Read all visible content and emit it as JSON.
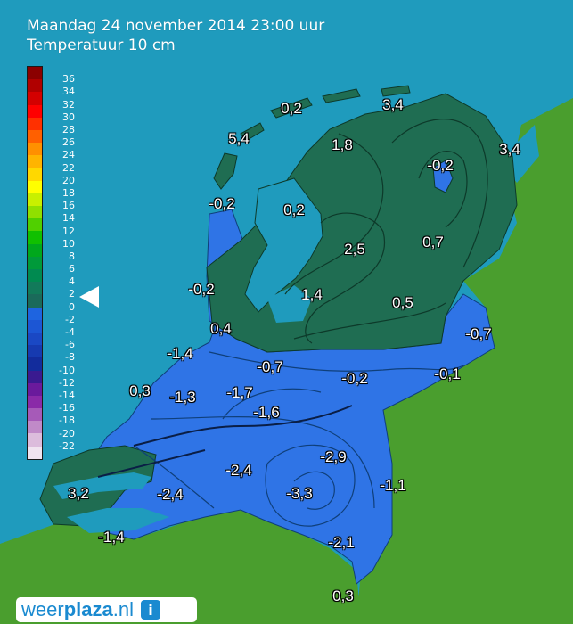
{
  "header": {
    "line1": "Maandag 24 november 2014 23:00 uur",
    "line2": "Temperatuur 10 cm"
  },
  "legend": {
    "labels": [
      "36",
      "34",
      "32",
      "30",
      "28",
      "26",
      "24",
      "22",
      "20",
      "18",
      "16",
      "14",
      "12",
      "10",
      "8",
      "6",
      "4",
      "2",
      "0",
      "-2",
      "-4",
      "-6",
      "-8",
      "-10",
      "-12",
      "-14",
      "-16",
      "-18",
      "-20",
      "-22"
    ],
    "colors": [
      "#8b0000",
      "#b00000",
      "#d40000",
      "#ff0000",
      "#ff3000",
      "#ff6000",
      "#ff9000",
      "#ffb400",
      "#ffd800",
      "#ffff00",
      "#c8f000",
      "#90e000",
      "#50d000",
      "#10c000",
      "#00a81c",
      "#009a3a",
      "#008a50",
      "#127a5a",
      "#1a6a5a",
      "#1e64e0",
      "#1c56d4",
      "#1a48c4",
      "#163ab0",
      "#122c9c",
      "#3a1a90",
      "#6a1a9c",
      "#8a2aa8",
      "#a65ab8",
      "#c08ac8",
      "#dcbcdc",
      "#f0e4f0"
    ]
  },
  "pointer": {
    "value": 3
  },
  "stations": [
    {
      "label": "0,2"
    },
    {
      "label": "3,4"
    },
    {
      "label": "5,4"
    },
    {
      "label": "1,8"
    },
    {
      "label": "3,4"
    },
    {
      "label": "-0,2"
    },
    {
      "label": "-0,2"
    },
    {
      "label": "0,2"
    },
    {
      "label": "2,5"
    },
    {
      "label": "0,7"
    },
    {
      "label": "-0,2"
    },
    {
      "label": "1,4"
    },
    {
      "label": "0,5"
    },
    {
      "label": "0,4"
    },
    {
      "label": "-0,7"
    },
    {
      "label": "-1,4"
    },
    {
      "label": "-0,7"
    },
    {
      "label": "-0,2"
    },
    {
      "label": "-0,1"
    },
    {
      "label": "0,3"
    },
    {
      "label": "-1,3"
    },
    {
      "label": "-1,7"
    },
    {
      "label": "-1,6"
    },
    {
      "label": "-2,9"
    },
    {
      "label": "-2,4"
    },
    {
      "label": "-1,1"
    },
    {
      "label": "3,2"
    },
    {
      "label": "-2,4"
    },
    {
      "label": "-3,3"
    },
    {
      "label": "-1,4"
    },
    {
      "label": "-2,1"
    },
    {
      "label": "0,3"
    }
  ],
  "brand": {
    "part1": "weer",
    "part2": "plaza",
    "part3": ".nl",
    "icon": "info-icon"
  },
  "colors": {
    "sea": "#1f9bbd",
    "land": "#4a9e2e",
    "cold": "#2f74e6",
    "warm": "#1f6d52"
  }
}
